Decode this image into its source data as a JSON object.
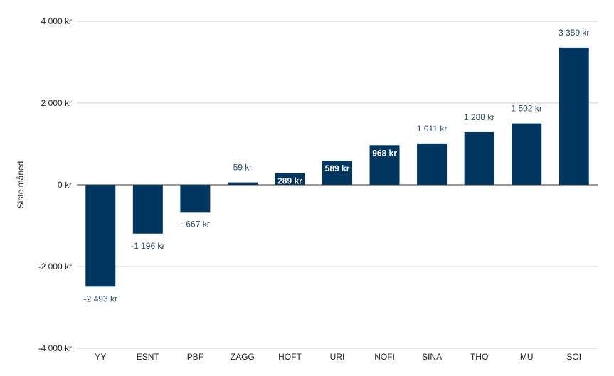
{
  "chart_data": {
    "type": "bar",
    "ylabel": "Siste måned",
    "xlabel": "",
    "ylim": [
      -4000,
      4000
    ],
    "yticks": [
      4000,
      2000,
      0,
      -2000,
      -4000
    ],
    "ytick_labels": [
      "4 000 kr",
      "2 000 kr",
      "0 kr",
      "-2 000 kr",
      "-4 000 kr"
    ],
    "grid": true,
    "bar_color": "#003660",
    "categories": [
      "YY",
      "ESNT",
      "PBF",
      "ZAGG",
      "HOFT",
      "URI",
      "NOFI",
      "SINA",
      "THO",
      "MU",
      "SOI"
    ],
    "values": [
      -2493,
      -1196,
      -667,
      59,
      289,
      589,
      968,
      1011,
      1288,
      1502,
      3359
    ],
    "data_labels": [
      "-2 493 kr",
      "-1 196 kr",
      "- 667 kr",
      "59 kr",
      "289 kr",
      "589 kr",
      "968 kr",
      "1 011 kr",
      "1 288 kr",
      "1 502 kr",
      "3 359 kr"
    ]
  }
}
